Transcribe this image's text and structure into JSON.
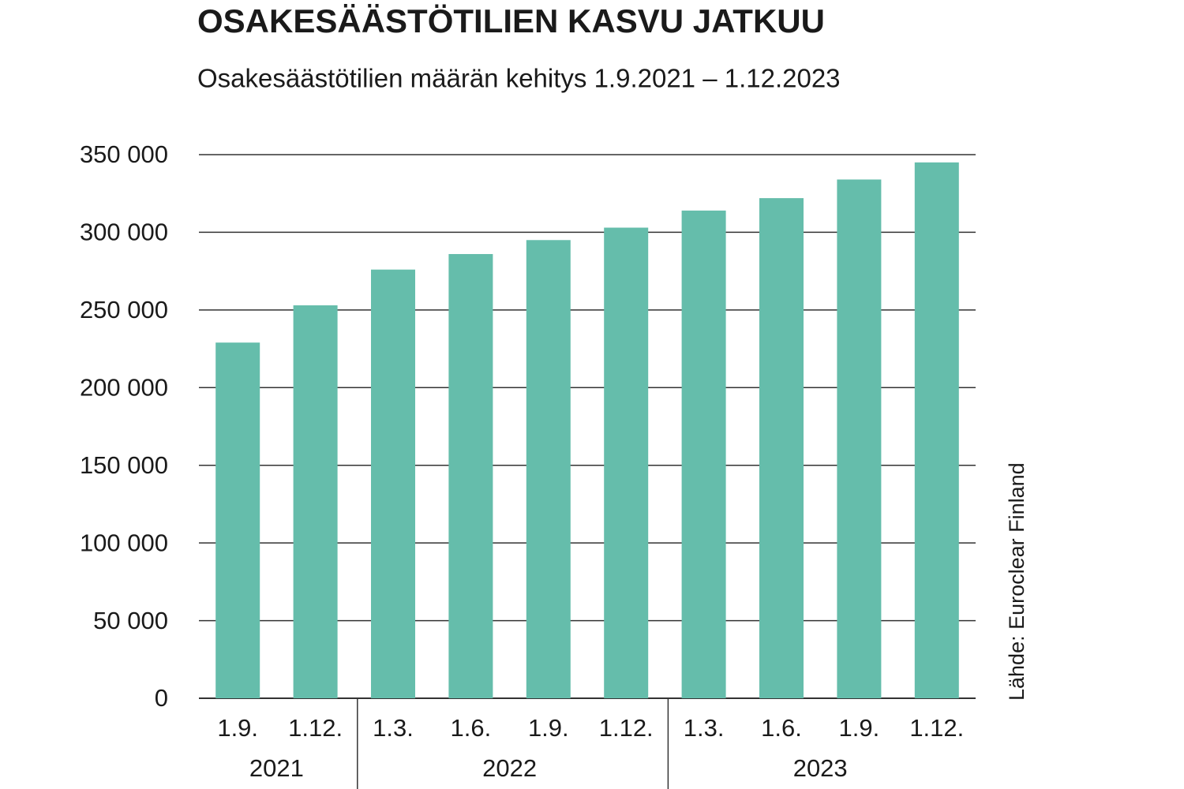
{
  "chart_data": {
    "type": "bar",
    "title": "OSAKESÄÄSTÖTILIEN KASVU JATKUU",
    "subtitle": "Osakesäästötilien määrän kehitys 1.9.2021 – 1.12.2023",
    "source": "Lähde: Euroclear Finland",
    "categories": [
      "1.9.",
      "1.12.",
      "1.3.",
      "1.6.",
      "1.9.",
      "1.12.",
      "1.3.",
      "1.6.",
      "1.9.",
      "1.12."
    ],
    "groups": [
      {
        "label": "2021",
        "count": 2
      },
      {
        "label": "2022",
        "count": 4
      },
      {
        "label": "2023",
        "count": 4
      }
    ],
    "values": [
      229000,
      253000,
      276000,
      286000,
      295000,
      303000,
      314000,
      322000,
      334000,
      345000
    ],
    "color": "#65bdab",
    "ylim": [
      0,
      350000
    ],
    "yticks": [
      0,
      {
        "value": 50000,
        "label": "50 000"
      },
      {
        "value": 100000,
        "label": "100 000"
      },
      {
        "value": 150000,
        "label": "150 000"
      },
      {
        "value": 200000,
        "label": "200 000"
      },
      {
        "value": 250000,
        "label": "250 000"
      },
      {
        "value": 300000,
        "label": "300 000"
      },
      {
        "value": 350000,
        "label": "350 000"
      }
    ],
    "grid": true
  }
}
